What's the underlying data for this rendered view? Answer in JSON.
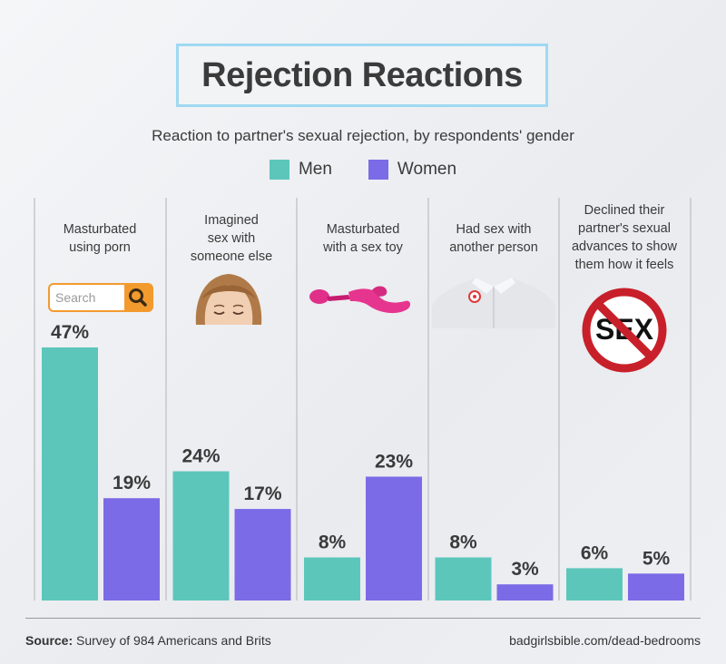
{
  "title": "Rejection Reactions",
  "subtitle": "Reaction to partner's sexual rejection, by respondents' gender",
  "colors": {
    "men": "#5dc6bb",
    "women": "#7b6be6",
    "title_border": "#9fd9f2",
    "accent_orange": "#f29a2e"
  },
  "legend": [
    {
      "label": "Men",
      "color": "#5dc6bb"
    },
    {
      "label": "Women",
      "color": "#7b6be6"
    }
  ],
  "categories": [
    {
      "label_lines": [
        "Masturbated",
        "using porn"
      ]
    },
    {
      "label_lines": [
        "Imagined",
        "sex with",
        "someone else"
      ]
    },
    {
      "label_lines": [
        "Masturbated",
        "with a sex toy"
      ]
    },
    {
      "label_lines": [
        "Had sex with",
        "another person"
      ]
    },
    {
      "label_lines": [
        "Declined their",
        "partner's sexual",
        "advances to show",
        "them how it feels"
      ]
    }
  ],
  "illustrations": {
    "search_placeholder": "Search",
    "sex_sign_text": "SEX"
  },
  "chart_data": {
    "type": "bar",
    "categories": [
      "Masturbated using porn",
      "Imagined sex with someone else",
      "Masturbated with a sex toy",
      "Had sex with another person",
      "Declined their partner's sexual advances to show them how it feels"
    ],
    "series": [
      {
        "name": "Men",
        "values": [
          47,
          24,
          8,
          8,
          6
        ],
        "labels": [
          "47%",
          "24%",
          "8%",
          "8%",
          "6%"
        ]
      },
      {
        "name": "Women",
        "values": [
          19,
          17,
          23,
          3,
          5
        ],
        "labels": [
          "19%",
          "17%",
          "23%",
          "3%",
          "5%"
        ]
      }
    ],
    "ylim": [
      0,
      47
    ],
    "grid": false
  },
  "footer": {
    "source_label": "Source:",
    "source_text": " Survey of 984 Americans and Brits",
    "credit": "badgirlsbible.com/dead-bedrooms"
  }
}
